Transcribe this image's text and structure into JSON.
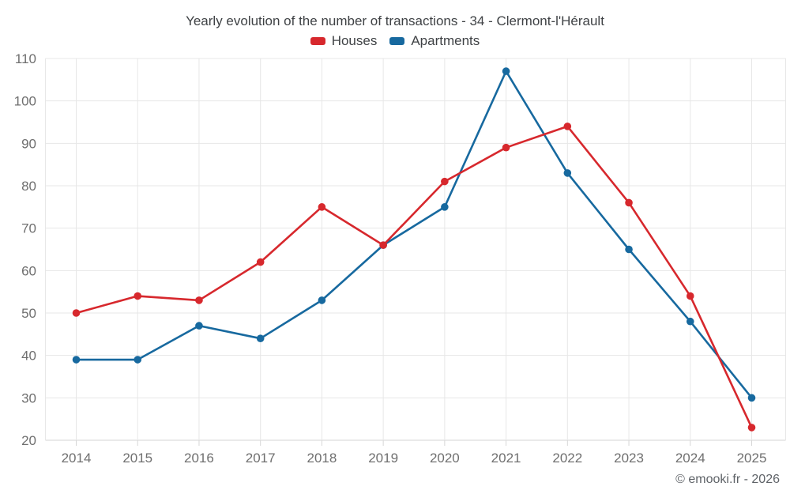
{
  "title": "Yearly evolution of the number of transactions - 34 - Clermont-l'Hérault",
  "footer": "© emooki.fr - 2026",
  "colors": {
    "houses": "#d7282d",
    "apartments": "#17699f",
    "grid": "#e7e7e7",
    "axis": "#d6d6d6",
    "axis_text": "#6f6f6f",
    "title_text": "#3f4245",
    "footer_text": "#5f6368",
    "background": "#ffffff"
  },
  "chart_data": {
    "type": "line",
    "title": "Yearly evolution of the number of transactions - 34 - Clermont-l'Hérault",
    "categories": [
      "2014",
      "2015",
      "2016",
      "2017",
      "2018",
      "2019",
      "2020",
      "2021",
      "2022",
      "2023",
      "2024",
      "2025"
    ],
    "series": [
      {
        "name": "Houses",
        "color": "#d7282d",
        "values": [
          50,
          54,
          53,
          62,
          75,
          66,
          81,
          89,
          94,
          76,
          54,
          23
        ]
      },
      {
        "name": "Apartments",
        "color": "#17699f",
        "values": [
          39,
          39,
          47,
          44,
          53,
          66,
          75,
          107,
          83,
          65,
          48,
          30
        ]
      }
    ],
    "ylim": [
      20,
      110
    ],
    "ytick_step": 10,
    "grid": true,
    "legend_position": "top",
    "marker": "circle",
    "xlabel": "",
    "ylabel": ""
  }
}
